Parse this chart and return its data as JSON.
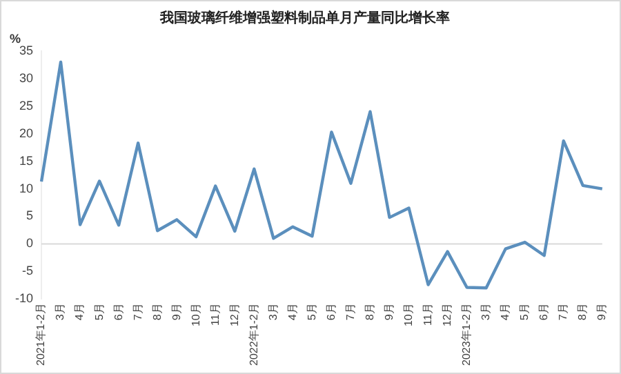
{
  "chart_data": {
    "type": "line",
    "title": "我国玻璃纤维增强塑料制品单月产量同比增长率",
    "ylabel": "%",
    "categories": [
      "2021年1-2月",
      "3月",
      "4月",
      "5月",
      "6月",
      "7月",
      "8月",
      "9月",
      "10月",
      "11月",
      "12月",
      "2022年1-2月",
      "3月",
      "4月",
      "5月",
      "6月",
      "7月",
      "8月",
      "9月",
      "10月",
      "11月",
      "12月",
      "2023年1-2月",
      "3月",
      "4月",
      "5月",
      "6月",
      "7月",
      "8月",
      "9月"
    ],
    "series": [
      {
        "color": "#5b8fbd",
        "values": [
          11.3,
          33,
          3.5,
          11.4,
          3.4,
          18.3,
          2.4,
          4.4,
          1.3,
          10.5,
          2.3,
          13.6,
          1.0,
          3.1,
          1.4,
          20.3,
          11,
          24,
          4.8,
          6.5,
          -7.4,
          -1.4,
          -7.9,
          -8,
          -0.9,
          0.3,
          -2.1,
          18.7,
          10.6,
          10
        ]
      }
    ],
    "ylim": [
      -10,
      35
    ],
    "yticks": [
      -10,
      -5,
      0,
      5,
      10,
      15,
      20,
      25,
      30,
      35
    ],
    "ref_lines": [
      {
        "axis": "y",
        "value": 0,
        "color": "#d9d9d9"
      }
    ],
    "grid": false,
    "legend": false,
    "marker": "none",
    "line_style": "solid"
  }
}
